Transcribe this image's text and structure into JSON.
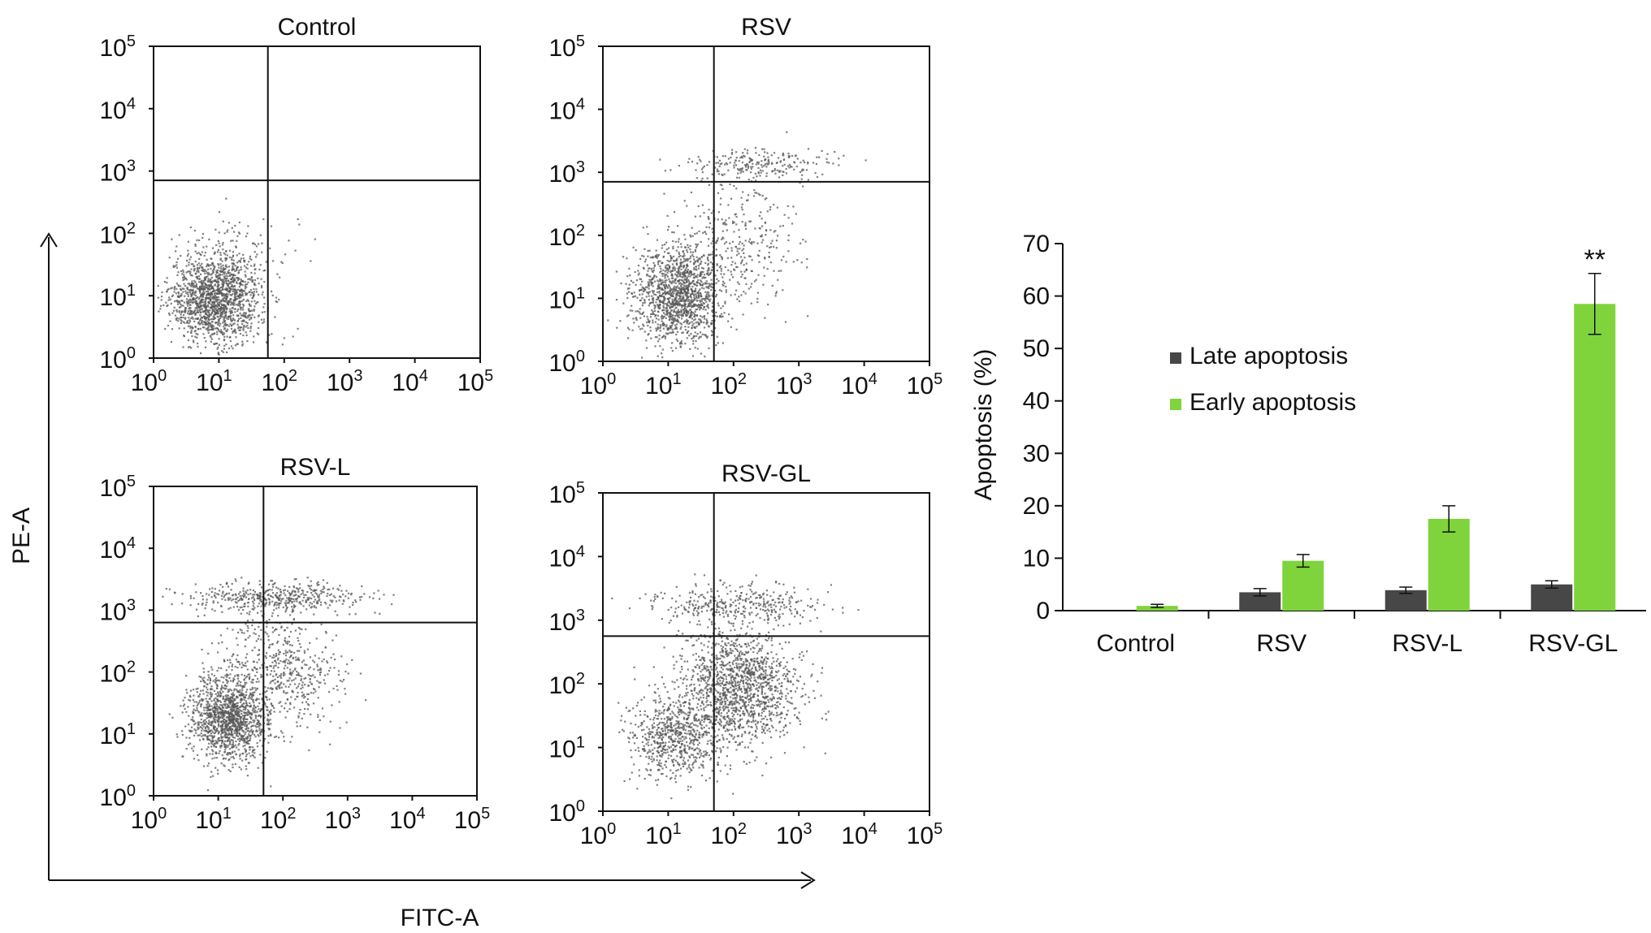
{
  "chart_data": [
    {
      "type": "scatter",
      "title": "Control",
      "x_ticks": [
        "0",
        "1",
        "2",
        "3",
        "4",
        "5"
      ],
      "y_ticks": [
        "0",
        "1",
        "2",
        "3",
        "4",
        "5"
      ],
      "tick_base": "10",
      "gate": {
        "x": 1.75,
        "y": 2.85
      },
      "clusters": [
        {
          "cx": 0.95,
          "cy": 0.95,
          "sx": 0.35,
          "sy": 0.35,
          "n": 1500
        },
        {
          "cx": 1.3,
          "cy": 1.5,
          "sx": 0.45,
          "sy": 0.45,
          "n": 120
        }
      ]
    },
    {
      "type": "scatter",
      "title": "RSV",
      "x_ticks": [
        "0",
        "1",
        "2",
        "3",
        "4",
        "5"
      ],
      "y_ticks": [
        "0",
        "1",
        "2",
        "3",
        "4",
        "5"
      ],
      "tick_base": "10",
      "gate": {
        "x": 1.7,
        "y": 2.85
      },
      "clusters": [
        {
          "cx": 1.15,
          "cy": 1.05,
          "sx": 0.35,
          "sy": 0.4,
          "n": 1400
        },
        {
          "cx": 2.1,
          "cy": 1.9,
          "sx": 0.45,
          "sy": 0.5,
          "n": 300
        },
        {
          "cx": 2.4,
          "cy": 3.15,
          "sx": 0.55,
          "sy": 0.12,
          "n": 220
        }
      ]
    },
    {
      "type": "scatter",
      "title": "RSV-L",
      "x_ticks": [
        "0",
        "1",
        "2",
        "3",
        "4",
        "5"
      ],
      "y_ticks": [
        "0",
        "1",
        "2",
        "3",
        "4",
        "5"
      ],
      "tick_base": "10",
      "gate": {
        "x": 1.7,
        "y": 2.8
      },
      "clusters": [
        {
          "cx": 1.15,
          "cy": 1.25,
          "sx": 0.3,
          "sy": 0.35,
          "n": 1300
        },
        {
          "cx": 2.0,
          "cy": 2.0,
          "sx": 0.45,
          "sy": 0.5,
          "n": 550
        },
        {
          "cx": 1.9,
          "cy": 3.2,
          "sx": 0.7,
          "sy": 0.12,
          "n": 450
        }
      ]
    },
    {
      "type": "scatter",
      "title": "RSV-GL",
      "x_ticks": [
        "0",
        "1",
        "2",
        "3",
        "4",
        "5"
      ],
      "y_ticks": [
        "0",
        "1",
        "2",
        "3",
        "4",
        "5"
      ],
      "tick_base": "10",
      "gate": {
        "x": 1.7,
        "y": 2.75
      },
      "clusters": [
        {
          "cx": 1.1,
          "cy": 1.15,
          "sx": 0.35,
          "sy": 0.35,
          "n": 700
        },
        {
          "cx": 2.1,
          "cy": 1.95,
          "sx": 0.45,
          "sy": 0.45,
          "n": 1400
        },
        {
          "cx": 2.1,
          "cy": 3.25,
          "sx": 0.65,
          "sy": 0.15,
          "n": 350
        }
      ]
    },
    {
      "type": "bar",
      "categories": [
        "Control",
        "RSV",
        "RSV-L",
        "RSV-GL"
      ],
      "series": [
        {
          "name": "Late apoptosis",
          "values": [
            0,
            3.5,
            3.9,
            5.0
          ],
          "errors": [
            0,
            0.7,
            0.6,
            0.7
          ],
          "color": "#474747"
        },
        {
          "name": "Early apoptosis",
          "values": [
            0.9,
            9.5,
            17.5,
            58.5
          ],
          "errors": [
            0.3,
            1.2,
            2.5,
            5.8
          ],
          "color": "#7fd43c"
        }
      ],
      "ylabel": "Apoptosis (%)",
      "ylim": [
        0,
        70
      ],
      "yticks": [
        0,
        10,
        20,
        30,
        40,
        50,
        60,
        70
      ],
      "annotations": [
        {
          "category": "RSV-GL",
          "series": "Early apoptosis",
          "text": "**"
        }
      ],
      "legend": "center"
    }
  ],
  "shared_axes": {
    "xlabel": "FITC-A",
    "ylabel": "PE-A"
  },
  "colors": {
    "dots": "#555555",
    "axes": "#111111"
  }
}
